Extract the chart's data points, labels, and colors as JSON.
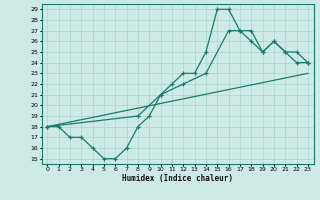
{
  "xlabel": "Humidex (Indice chaleur)",
  "bg_color": "#ceeae4",
  "grid_color": "#a8d4cc",
  "line_color": "#1a7a6e",
  "xlim": [
    -0.5,
    23.5
  ],
  "ylim": [
    14.5,
    29.5
  ],
  "xticks": [
    0,
    1,
    2,
    3,
    4,
    5,
    6,
    7,
    8,
    9,
    10,
    11,
    12,
    13,
    14,
    15,
    16,
    17,
    18,
    19,
    20,
    21,
    22,
    23
  ],
  "yticks": [
    15,
    16,
    17,
    18,
    19,
    20,
    21,
    22,
    23,
    24,
    25,
    26,
    27,
    28,
    29
  ],
  "line1_x": [
    0,
    1,
    2,
    3,
    4,
    5,
    6,
    7,
    8,
    9,
    10,
    11,
    12,
    13,
    14,
    15,
    16,
    17,
    18,
    19,
    20,
    21,
    22,
    23
  ],
  "line1_y": [
    18,
    18,
    17,
    17,
    16,
    15,
    15,
    16,
    18,
    19,
    21,
    22,
    23,
    23,
    25,
    29,
    29,
    27,
    27,
    25,
    26,
    25,
    24,
    24
  ],
  "line2_x": [
    0,
    23
  ],
  "line2_y": [
    18,
    23
  ],
  "line3_x": [
    0,
    8,
    10,
    12,
    14,
    16,
    17,
    18,
    19,
    20,
    21,
    22,
    23
  ],
  "line3_y": [
    18,
    19,
    21,
    22,
    23,
    27,
    27,
    26,
    25,
    26,
    25,
    25,
    24
  ]
}
